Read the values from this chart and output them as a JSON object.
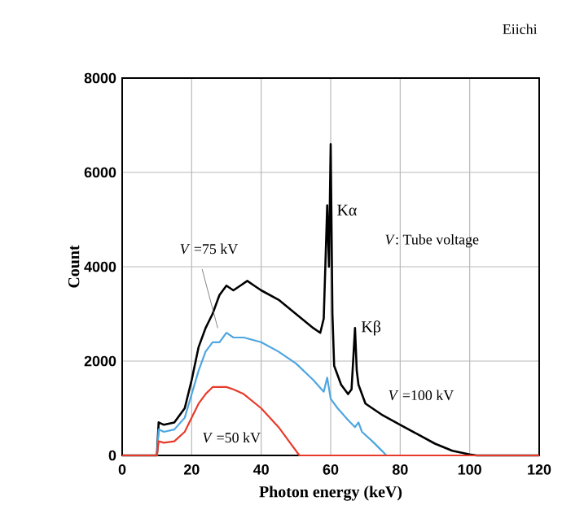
{
  "chart_data": {
    "type": "line",
    "xlabel": "Photon energy (keV)",
    "ylabel": "Count",
    "xlim": [
      0,
      120
    ],
    "ylim": [
      0,
      8000
    ],
    "xticks": [
      0,
      20,
      40,
      60,
      80,
      100,
      120
    ],
    "yticks": [
      0,
      2000,
      4000,
      6000,
      8000
    ],
    "grid": true,
    "series": [
      {
        "name": "*V* =100 kV",
        "color": "#000000",
        "x": [
          0,
          10,
          10.5,
          12,
          15,
          18,
          20,
          22,
          24,
          26,
          28,
          30,
          32,
          34,
          36,
          38,
          40,
          45,
          50,
          55,
          57,
          58,
          59,
          59.5,
          60,
          60.5,
          61,
          63,
          65,
          66,
          67,
          67.5,
          68,
          70,
          75,
          80,
          85,
          90,
          95,
          100,
          102,
          120
        ],
        "values": [
          0,
          0,
          700,
          650,
          700,
          1000,
          1600,
          2300,
          2700,
          3000,
          3400,
          3600,
          3500,
          3600,
          3700,
          3600,
          3500,
          3300,
          3000,
          2700,
          2600,
          2900,
          5300,
          4000,
          6600,
          3000,
          1900,
          1500,
          1300,
          1400,
          2700,
          1800,
          1500,
          1100,
          850,
          650,
          450,
          250,
          100,
          20,
          0,
          0
        ]
      },
      {
        "name": "*V* =75 kV",
        "color": "#4da6e0",
        "x": [
          0,
          10,
          10.5,
          12,
          15,
          18,
          20,
          22,
          24,
          26,
          28,
          30,
          32,
          35,
          40,
          45,
          50,
          55,
          58,
          59,
          60,
          62,
          65,
          67,
          68,
          69,
          72,
          75,
          76,
          120
        ],
        "values": [
          0,
          0,
          550,
          500,
          550,
          800,
          1300,
          1800,
          2200,
          2400,
          2400,
          2600,
          2500,
          2500,
          2400,
          2200,
          1950,
          1600,
          1350,
          1650,
          1200,
          1000,
          750,
          600,
          700,
          500,
          300,
          80,
          0,
          0
        ]
      },
      {
        "name": "*V* =50 kV",
        "color": "#e83a2a",
        "x": [
          0,
          10,
          10.5,
          12,
          15,
          18,
          20,
          22,
          24,
          26,
          28,
          30,
          32,
          35,
          40,
          45,
          48,
          51,
          120
        ],
        "values": [
          0,
          0,
          300,
          270,
          300,
          500,
          800,
          1100,
          1300,
          1450,
          1450,
          1450,
          1400,
          1300,
          1000,
          600,
          300,
          0,
          0
        ]
      }
    ],
    "annotations": [
      "Eiichi",
      {
        "text": "Kα",
        "x": 60,
        "y": 5200
      },
      {
        "text": "Kβ",
        "x": 67,
        "y": 2700
      },
      "*V*: Tube voltage"
    ]
  }
}
